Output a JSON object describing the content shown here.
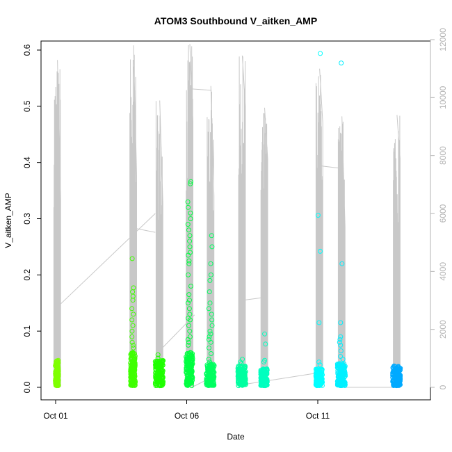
{
  "chart_data": {
    "type": "scatter",
    "title": "ATOM3 Southbound V_aitken_AMP",
    "xlabel": "Date",
    "ylabel": "V_aitken_AMP",
    "x_ticks": [
      "Oct 01",
      "Oct 06",
      "Oct 11"
    ],
    "x_tick_days": [
      1,
      6,
      11
    ],
    "xlim_days": [
      0.6,
      14.3
    ],
    "ylim": [
      0,
      0.6
    ],
    "y_ticks": [
      0.0,
      0.1,
      0.2,
      0.3,
      0.4,
      0.5,
      0.6
    ],
    "y_tick_labels": [
      "0.0",
      "0.1",
      "0.2",
      "0.3",
      "0.4",
      "0.5",
      "0.6"
    ],
    "y2_lim": [
      0,
      12000
    ],
    "y2_ticks": [
      0,
      2000,
      4000,
      6000,
      8000,
      10000,
      12000
    ],
    "y2_tick_labels": [
      "0",
      "2000",
      "4000",
      "6000",
      "8000",
      "10000",
      "12000"
    ],
    "y2_color": "#b3b3b3",
    "grid": false,
    "series": [
      {
        "type": "points",
        "clusters": [
          {
            "day": 1.05,
            "width": 0.12,
            "base_max": 0.045,
            "color": "#7fff00",
            "outliers": []
          },
          {
            "day": 3.95,
            "width": 0.18,
            "base_max": 0.06,
            "color": "#3fff00",
            "outliers": [
              0.229,
              0.177,
              0.17,
              0.162,
              0.155,
              0.14,
              0.13,
              0.12,
              0.11,
              0.1,
              0.09,
              0.08,
              0.075,
              0.07
            ]
          },
          {
            "day": 4.95,
            "width": 0.3,
            "base_max": 0.045,
            "color": "#1fff00",
            "outliers": [
              0.058,
              0.052
            ]
          },
          {
            "day": 6.1,
            "width": 0.25,
            "base_max": 0.06,
            "color": "#00ff40",
            "outliers": [
              0.366,
              0.362,
              0.33,
              0.32,
              0.31,
              0.3,
              0.29,
              0.28,
              0.27,
              0.26,
              0.25,
              0.24,
              0.235,
              0.225,
              0.22,
              0.2,
              0.18,
              0.165,
              0.155,
              0.15,
              0.14,
              0.13,
              0.123,
              0.12,
              0.11,
              0.1,
              0.09,
              0.085,
              0.08,
              0.075
            ]
          },
          {
            "day": 6.9,
            "width": 0.3,
            "base_max": 0.04,
            "color": "#00ff60",
            "outliers": [
              0.27,
              0.25,
              0.22,
              0.2,
              0.19,
              0.17,
              0.15,
              0.14,
              0.13,
              0.12,
              0.11,
              0.1,
              0.095,
              0.09,
              0.085,
              0.08,
              0.07,
              0.06,
              0.05,
              0.045
            ]
          },
          {
            "day": 8.1,
            "width": 0.3,
            "base_max": 0.035,
            "color": "#00ffa0",
            "outliers": [
              0.05,
              0.045,
              0.042
            ]
          },
          {
            "day": 8.95,
            "width": 0.25,
            "base_max": 0.03,
            "color": "#00ffbf",
            "outliers": [
              0.095,
              0.077,
              0.048,
              0.045
            ]
          },
          {
            "day": 11.05,
            "width": 0.25,
            "base_max": 0.03,
            "color": "#00ffff",
            "outliers": [
              0.594,
              0.306,
              0.242,
              0.115,
              0.045,
              0.04
            ]
          },
          {
            "day": 11.9,
            "width": 0.3,
            "base_max": 0.04,
            "color": "#00f0ff",
            "outliers": [
              0.577,
              0.22,
              0.115,
              0.09,
              0.085,
              0.08,
              0.075,
              0.065,
              0.055,
              0.05
            ]
          },
          {
            "day": 14.0,
            "width": 0.3,
            "base_max": 0.035,
            "color": "#00aaff",
            "outliers": []
          }
        ]
      },
      {
        "type": "line",
        "axis": "right",
        "color": "#c8c8c8",
        "bursts": [
          {
            "day": 1.05,
            "peak": 11300,
            "floor": 0
          },
          {
            "day": 3.95,
            "peak": 11800,
            "floor": 0
          },
          {
            "day": 4.95,
            "peak": 9900,
            "floor": 0
          },
          {
            "day": 6.1,
            "peak": 11850,
            "floor": 0
          },
          {
            "day": 6.9,
            "peak": 10400,
            "floor": 0
          },
          {
            "day": 8.1,
            "peak": 11450,
            "floor": 0
          },
          {
            "day": 8.95,
            "peak": 9650,
            "floor": 0
          },
          {
            "day": 11.05,
            "peak": 11000,
            "floor": 0
          },
          {
            "day": 11.9,
            "peak": 9350,
            "floor": 0
          },
          {
            "day": 14.0,
            "peak": 9400,
            "floor": 0
          }
        ],
        "connectors": [
          [
            1.1,
            2800,
            4.8,
            6000
          ],
          [
            3.95,
            5500,
            4.8,
            5350
          ],
          [
            4.9,
            1200,
            6.3,
            2500
          ],
          [
            6.15,
            10300,
            6.95,
            10250
          ],
          [
            6.2,
            0,
            6.85,
            300
          ],
          [
            8.1,
            3000,
            8.95,
            3100
          ],
          [
            8.2,
            100,
            11.0,
            500
          ],
          [
            11.05,
            7650,
            11.95,
            7550
          ],
          [
            11.95,
            0,
            14.0,
            0
          ]
        ]
      }
    ]
  }
}
